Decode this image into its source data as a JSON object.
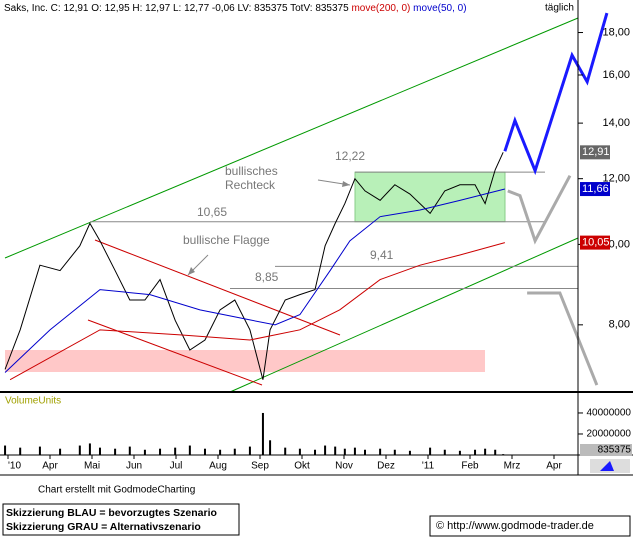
{
  "chart_data": {
    "type": "line",
    "title": "Saks, Inc. C: 12,91 O: 12,95 H: 12,97 L: 12,77 -0,06 LV: 835375 TotV: 835375",
    "period": "täglich",
    "log_scale": true,
    "ylim": [
      6.64,
      19.7
    ],
    "yticks": [
      {
        "value": 8,
        "label": "8,00"
      },
      {
        "value": 10,
        "label": "10,00"
      },
      {
        "value": 12,
        "label": "12,00"
      },
      {
        "value": 14,
        "label": "14,00"
      },
      {
        "value": 16,
        "label": "16,00"
      },
      {
        "value": 18,
        "label": "18,00"
      }
    ],
    "xlim": [
      -0.19,
      13.57
    ],
    "xticks": [
      {
        "value": 0,
        "label": "'10"
      },
      {
        "value": 1,
        "label": "Apr"
      },
      {
        "value": 2,
        "label": "Mai"
      },
      {
        "value": 3,
        "label": "Jun"
      },
      {
        "value": 4,
        "label": "Jul"
      },
      {
        "value": 5,
        "label": "Aug"
      },
      {
        "value": 6,
        "label": "Sep"
      },
      {
        "value": 7,
        "label": "Okt"
      },
      {
        "value": 8,
        "label": "Nov"
      },
      {
        "value": 9,
        "label": "Dez"
      },
      {
        "value": 10,
        "label": "'11"
      },
      {
        "value": 11,
        "label": "Feb"
      },
      {
        "value": 12,
        "label": "Mrz"
      },
      {
        "value": 13,
        "label": "Apr"
      }
    ],
    "series": [
      {
        "color": "#000000",
        "x": [
          -0.07,
          0.29,
          0.76,
          1.24,
          1.71,
          1.95,
          2.19,
          2.55,
          2.9,
          3.26,
          3.62,
          3.98,
          4.33,
          4.69,
          5.05,
          5.4,
          5.76,
          6.07,
          6.24,
          6.6,
          6.95,
          7.31,
          7.55,
          7.79,
          8.02,
          8.26,
          8.5,
          8.86,
          9.21,
          9.57,
          10.05,
          10.4,
          10.76,
          11.12,
          11.36,
          11.6,
          11.79
        ],
        "values": [
          7.07,
          7.89,
          9.44,
          9.3,
          9.96,
          10.6,
          10.1,
          9.3,
          8.57,
          8.57,
          9.07,
          8.1,
          7.46,
          7.67,
          8.34,
          8.57,
          7.89,
          6.87,
          7.89,
          8.57,
          8.7,
          8.82,
          9.96,
          10.6,
          11.2,
          12.0,
          11.6,
          11.3,
          11.8,
          11.5,
          10.9,
          11.6,
          11.8,
          11.8,
          11.2,
          12.3,
          12.91
        ]
      },
      {
        "name": "move(200, 0)",
        "color": "#cc0000",
        "x": [
          0.05,
          2.19,
          4.1,
          5.76,
          6.95,
          7.9,
          8.86,
          9.81,
          10.76,
          11.83
        ],
        "values": [
          6.87,
          7.89,
          7.78,
          7.67,
          7.89,
          8.34,
          9.07,
          9.44,
          9.71,
          10.05
        ]
      },
      {
        "name": "move(50, 0)",
        "color": "#0000cc",
        "x": [
          -0.07,
          1.0,
          2.19,
          3.38,
          4.57,
          5.76,
          6.36,
          6.95,
          7.67,
          8.14,
          8.86,
          9.81,
          10.76,
          11.83
        ],
        "values": [
          7.01,
          7.89,
          8.82,
          8.7,
          8.34,
          8.11,
          8.0,
          8.23,
          9.3,
          10.1,
          10.8,
          11.0,
          11.3,
          11.66
        ]
      },
      {
        "color": "#1a1aff",
        "x": [
          11.83,
          12.07,
          12.55,
          13.43,
          13.79,
          14.26
        ],
        "values": [
          12.95,
          14.1,
          12.27,
          16.9,
          15.7,
          19.0
        ]
      },
      {
        "color": "#aaaaaa",
        "x": [
          11.9,
          12.19,
          12.55,
          13.38
        ],
        "values": [
          11.6,
          11.45,
          10.1,
          12.1
        ]
      },
      {
        "color": "#aaaaaa",
        "x": [
          12.36,
          13.14,
          14.02
        ],
        "values": [
          8.74,
          8.74,
          6.77
        ]
      }
    ],
    "levels": [
      {
        "value": 12.22,
        "label": "12,22"
      },
      {
        "value": 10.65,
        "label": "10,65"
      },
      {
        "value": 9.41,
        "label": "9,41"
      },
      {
        "value": 8.85,
        "label": "8,85"
      }
    ],
    "last_labels": [
      {
        "value": 12.91,
        "label": "12,91",
        "color": "#666666"
      },
      {
        "value": 11.66,
        "label": "11,66",
        "color": "#0000cc"
      },
      {
        "value": 10.05,
        "label": "10,05",
        "color": "#cc0000"
      }
    ],
    "annotations": [
      [
        "bullisches",
        "Rechteck"
      ],
      [
        "bullische Flagge"
      ]
    ],
    "volume": {
      "label": "VolumeUnits",
      "color": "#000000",
      "values": [
        9000000,
        7000000,
        8000000,
        6000000,
        9000000,
        11000000,
        7000000,
        6000000,
        8000000,
        5000000,
        6000000,
        7000000,
        9000000,
        6000000,
        5000000,
        6000000,
        8000000,
        40000000,
        14000000,
        7000000,
        6000000,
        5000000,
        9000000,
        8000000,
        6000000,
        7000000,
        5000000,
        6000000,
        5000000,
        4000000,
        7000000,
        5000000,
        4000000,
        5000000,
        6000000,
        5000000,
        835375
      ],
      "ylim": [
        0,
        59000000
      ],
      "yticks": [
        20000000,
        40000000
      ],
      "last_label": 835375
    }
  },
  "footer": {
    "credit": "Chart erstellt mit GodmodeCharting",
    "legend": [
      "Skizzierung BLAU = bevorzugtes Szenario",
      "Skizzierung GRAU = Alternativszenario"
    ],
    "url": "© http://www.godmode-trader.de"
  }
}
